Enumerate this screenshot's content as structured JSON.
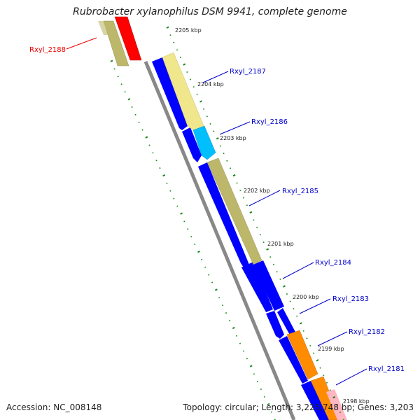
{
  "title": "Rubrobacter xylanophilus DSM 9941, complete genome",
  "footer": {
    "accession": "Accession: NC_008148",
    "topology": "Topology: circular; Length: 3,225,748 bp; Genes: 3,203"
  },
  "colors": {
    "cds_blue": "#0000ff",
    "backbone": "#888888",
    "tick_green": "#1a8a1a",
    "label_blue": "#0000cc",
    "label_red": "#ee0000",
    "khaki": "#bdb76b",
    "light_yellow": "#f0e68c",
    "cyan": "#00bfff",
    "orange": "#ff8c00",
    "red": "#ff0000",
    "pink": "#ffb6c1"
  },
  "ticks": [
    {
      "label": "2205 kbp"
    },
    {
      "label": "2204 kbp"
    },
    {
      "label": "2203 kbp"
    },
    {
      "label": "2202 kbp"
    },
    {
      "label": "2201 kbp"
    },
    {
      "label": "2200 kbp"
    },
    {
      "label": "2199 kbp"
    },
    {
      "label": "2198 kbp"
    }
  ],
  "genes": [
    {
      "id": "g2188",
      "label": "Rxyl_2188",
      "color": "red"
    },
    {
      "id": "g2187",
      "label": "Rxyl_2187",
      "color": "light_yellow"
    },
    {
      "id": "g2186",
      "label": "Rxyl_2186",
      "color": "cyan"
    },
    {
      "id": "g2185",
      "label": "Rxyl_2185",
      "color": "khaki"
    },
    {
      "id": "g2184",
      "label": "Rxyl_2184",
      "color": "cds_blue"
    },
    {
      "id": "g2183",
      "label": "Rxyl_2183",
      "color": "cds_blue"
    },
    {
      "id": "g2182",
      "label": "Rxyl_2182",
      "color": "orange"
    },
    {
      "id": "g2181",
      "label": "Rxyl_2181",
      "color": "orange"
    }
  ]
}
